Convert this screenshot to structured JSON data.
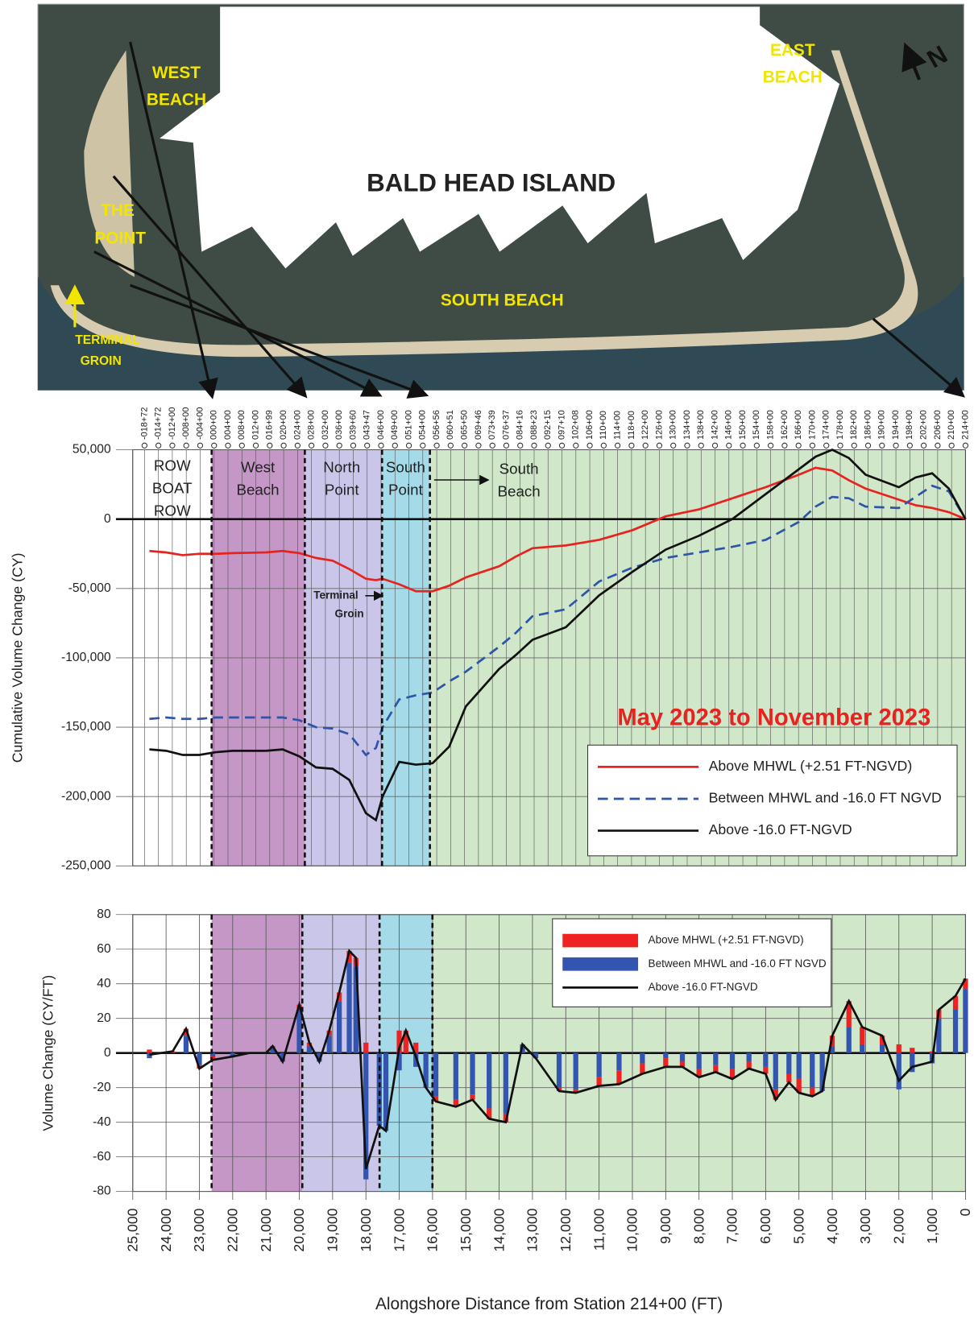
{
  "map": {
    "title": "BALD HEAD ISLAND",
    "west_beach": [
      "WEST",
      "BEACH"
    ],
    "the_point": [
      "THE",
      "POINT"
    ],
    "terminal_groin": [
      "TERMINAL",
      "GROIN"
    ],
    "south_beach": "SOUTH BEACH",
    "east_beach": [
      "EAST",
      "BEACH"
    ],
    "north": "N"
  },
  "chart_data": [
    {
      "type": "line",
      "y_label": "Cumulative Volume Change (CY)",
      "annotation": "May 2023 to November 2023",
      "legend": "lower right",
      "zones": {
        "row": [
          "ROW",
          "BOAT",
          "ROW"
        ],
        "west": [
          "West",
          "Beach"
        ],
        "north": [
          "North",
          "Point"
        ],
        "south_point": [
          "South",
          "Point"
        ],
        "south_beach": [
          "South",
          "Beach"
        ],
        "groin": [
          "Terminal",
          "Groin"
        ]
      },
      "stations": [
        "-018+72",
        "-014+72",
        "-012+00",
        "-008+00",
        "-004+00",
        "000+00",
        "004+00",
        "008+00",
        "012+00",
        "016+99",
        "020+00",
        "024+00",
        "028+00",
        "032+00",
        "036+00",
        "039+60",
        "043+47",
        "046+00",
        "049+00",
        "051+00",
        "054+00",
        "056+56",
        "060+51",
        "065+50",
        "069+46",
        "073+39",
        "076+37",
        "084+16",
        "088+23",
        "092+15",
        "097+10",
        "102+08",
        "106+00",
        "110+00",
        "114+00",
        "118+00",
        "122+00",
        "126+00",
        "130+00",
        "134+00",
        "138+00",
        "142+00",
        "146+00",
        "150+00",
        "154+00",
        "158+00",
        "162+00",
        "166+00",
        "170+00",
        "174+00",
        "178+00",
        "182+00",
        "186+00",
        "190+00",
        "194+00",
        "198+00",
        "202+00",
        "206+00",
        "210+00",
        "214+00"
      ],
      "xlim": [
        25000,
        0
      ],
      "ylim": [
        -250000,
        50000
      ],
      "yticks": [
        {
          "value": 50000,
          "label": "50,000"
        },
        0,
        {
          "value": -50000,
          "label": "-50,000"
        },
        {
          "value": -100000,
          "label": "-100,000"
        },
        {
          "value": -150000,
          "label": "-150,000"
        },
        {
          "value": -200000,
          "label": "-200,000"
        },
        {
          "value": -250000,
          "label": "-250,000"
        }
      ],
      "x": [
        24500,
        24000,
        23500,
        23000,
        22500,
        22000,
        21000,
        20500,
        20000,
        19500,
        19000,
        18500,
        18000,
        17700,
        17500,
        17000,
        16500,
        16000,
        15500,
        15000,
        14000,
        13500,
        13000,
        12000,
        11000,
        10000,
        9000,
        8000,
        7000,
        6000,
        5000,
        4500,
        4000,
        3500,
        3000,
        2000,
        1500,
        1000,
        500,
        0
      ],
      "series": [
        {
          "name": "Above MHWL (+2.51 FT-NGVD)",
          "color": "#e8231f",
          "dash": false,
          "values": [
            -23000,
            -24000,
            -26000,
            -25000,
            -25000,
            -24500,
            -24000,
            -23000,
            -24500,
            -28000,
            -30000,
            -36000,
            -43000,
            -44000,
            -43000,
            -47000,
            -52000,
            -52000,
            -48000,
            -42000,
            -34000,
            -27000,
            -21000,
            -19000,
            -15000,
            -8000,
            2000,
            7000,
            15000,
            23000,
            32000,
            37000,
            35000,
            28000,
            22000,
            14000,
            10000,
            8000,
            5000,
            0
          ]
        },
        {
          "name": "Between MHWL and -16.0 FT NGVD",
          "color": "#2e55a8",
          "dash": true,
          "values": [
            -144000,
            -143000,
            -144000,
            -144000,
            -143000,
            -143000,
            -143000,
            -143000,
            -145000,
            -150000,
            -151000,
            -155000,
            -170000,
            -165000,
            -150000,
            -130000,
            -127000,
            -125000,
            -117000,
            -110000,
            -92000,
            -82000,
            -70000,
            -65000,
            -45000,
            -35000,
            -28000,
            -24000,
            -20000,
            -15000,
            -2000,
            9000,
            16000,
            15000,
            9000,
            8000,
            16000,
            24000,
            20000,
            0
          ]
        },
        {
          "name": "Above -16.0 FT-NGVD",
          "color": "#111111",
          "dash": false,
          "values": [
            -166000,
            -167000,
            -170000,
            -170000,
            -168000,
            -167000,
            -167000,
            -166000,
            -171000,
            -179000,
            -180000,
            -188000,
            -212000,
            -217000,
            -200000,
            -175000,
            -177000,
            -176000,
            -164000,
            -135000,
            -108000,
            -98000,
            -87000,
            -78000,
            -55000,
            -38000,
            -22000,
            -12000,
            0,
            18000,
            36000,
            45000,
            50000,
            44000,
            32000,
            23000,
            30000,
            33000,
            22000,
            0
          ]
        }
      ]
    },
    {
      "type": "bar",
      "stacked": true,
      "y_label": "Volume Change (CY/FT)",
      "x_label": "Alongshore Distance from Station 214+00 (FT)",
      "legend": "upper right",
      "xlim": [
        25000,
        0
      ],
      "ylim": [
        -80,
        80
      ],
      "yticks": [
        80,
        60,
        40,
        20,
        0,
        -20,
        -40,
        -60,
        -80
      ],
      "xticks": [
        {
          "value": 25000,
          "label": "25,000"
        },
        {
          "value": 24000,
          "label": "24,000"
        },
        {
          "value": 23000,
          "label": "23,000"
        },
        {
          "value": 22000,
          "label": "22,000"
        },
        {
          "value": 21000,
          "label": "21,000"
        },
        {
          "value": 20000,
          "label": "20,000"
        },
        {
          "value": 19000,
          "label": "19,000"
        },
        {
          "value": 18000,
          "label": "18,000"
        },
        {
          "value": 17000,
          "label": "17,000"
        },
        {
          "value": 16000,
          "label": "16,000"
        },
        {
          "value": 15000,
          "label": "15,000"
        },
        {
          "value": 14000,
          "label": "14,000"
        },
        {
          "value": 13000,
          "label": "13,000"
        },
        {
          "value": 12000,
          "label": "12,000"
        },
        {
          "value": 11000,
          "label": "11,000"
        },
        {
          "value": 10000,
          "label": "10,000"
        },
        {
          "value": 9000,
          "label": "9,000"
        },
        {
          "value": 8000,
          "label": "8,000"
        },
        {
          "value": 7000,
          "label": "7,000"
        },
        {
          "value": 6000,
          "label": "6,000"
        },
        {
          "value": 5000,
          "label": "5,000"
        },
        {
          "value": 4000,
          "label": "4,000"
        },
        {
          "value": 3000,
          "label": "3,000"
        },
        {
          "value": 2000,
          "label": "2,000"
        },
        {
          "value": 1000,
          "label": "1,000"
        },
        0
      ],
      "x": [
        24500,
        23800,
        23400,
        23000,
        22600,
        22000,
        21500,
        21000,
        20800,
        20500,
        20000,
        19700,
        19400,
        19100,
        18800,
        18500,
        18300,
        18000,
        17600,
        17400,
        17000,
        16800,
        16500,
        16200,
        15900,
        15300,
        14800,
        14300,
        13800,
        13300,
        12900,
        12200,
        11700,
        11000,
        10400,
        9700,
        9000,
        8500,
        8000,
        7500,
        7000,
        6500,
        6000,
        5700,
        5300,
        5000,
        4600,
        4300,
        4000,
        3500,
        3100,
        2500,
        2000,
        1600,
        1000,
        800,
        300,
        0
      ],
      "series": [
        {
          "name": "Above MHWL (+2.51 FT-NGVD)",
          "color": "#ee2222",
          "type": "bar",
          "values": [
            2,
            1,
            4,
            -2,
            -2,
            0,
            0,
            0,
            1,
            0,
            3,
            2,
            0,
            3,
            5,
            7,
            5,
            6,
            0,
            0,
            13,
            13,
            6,
            0,
            -3,
            -4,
            -3,
            -6,
            -5,
            0,
            0,
            -2,
            -2,
            -5,
            -8,
            -6,
            -5,
            -3,
            -5,
            -4,
            -6,
            -4,
            -4,
            -6,
            -5,
            -8,
            -5,
            0,
            6,
            15,
            10,
            5,
            5,
            3,
            1,
            5,
            8,
            6
          ]
        },
        {
          "name": "Between MHWL and -16.0 FT NGVD",
          "color": "#3355b0",
          "type": "bar",
          "values": [
            -3,
            0,
            10,
            -7,
            -2,
            -2,
            0,
            0,
            3,
            -5,
            25,
            4,
            -5,
            10,
            30,
            52,
            50,
            -73,
            -42,
            -45,
            -10,
            0,
            -8,
            -20,
            -25,
            -27,
            -24,
            -32,
            -35,
            5,
            -3,
            -20,
            -21,
            -14,
            -10,
            -6,
            -3,
            -5,
            -9,
            -7,
            -9,
            -5,
            -8,
            -21,
            -12,
            -15,
            -20,
            -22,
            4,
            15,
            5,
            5,
            -21,
            -11,
            -6,
            20,
            25,
            37
          ]
        },
        {
          "name": "Above -16.0 FT-NGVD",
          "color": "#111111",
          "type": "line",
          "values": [
            -1,
            1,
            14,
            -9,
            -4,
            -2,
            0,
            0,
            4,
            -5,
            28,
            6,
            -5,
            13,
            35,
            59,
            55,
            -67,
            -42,
            -45,
            3,
            13,
            -2,
            -20,
            -28,
            -31,
            -27,
            -38,
            -40,
            5,
            -3,
            -22,
            -23,
            -19,
            -18,
            -12,
            -8,
            -8,
            -14,
            -11,
            -15,
            -9,
            -12,
            -27,
            -17,
            -23,
            -25,
            -22,
            10,
            30,
            15,
            10,
            -16,
            -8,
            -5,
            25,
            33,
            43
          ]
        }
      ]
    }
  ]
}
